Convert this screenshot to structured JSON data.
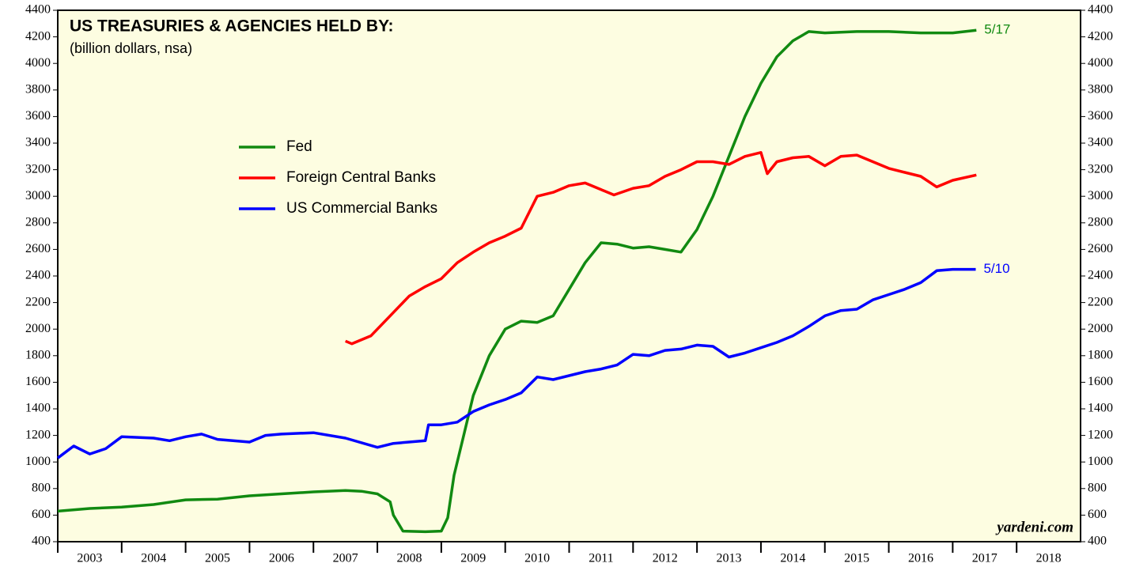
{
  "chart_data": {
    "type": "line",
    "title": "US TREASURIES & AGENCIES HELD BY:",
    "subtitle": "(billion dollars, nsa)",
    "source": "yardeni.com",
    "xlim": [
      2003,
      2019
    ],
    "xticks": [
      2003,
      2004,
      2005,
      2006,
      2007,
      2008,
      2009,
      2010,
      2011,
      2012,
      2013,
      2014,
      2015,
      2016,
      2017,
      2018
    ],
    "ylim": [
      400,
      4400
    ],
    "yticks": [
      400,
      600,
      800,
      1000,
      1200,
      1400,
      1600,
      1800,
      2000,
      2200,
      2400,
      2600,
      2800,
      3000,
      3200,
      3400,
      3600,
      3800,
      4000,
      4200,
      4400
    ],
    "series": [
      {
        "name": "Fed",
        "color": "#118a11",
        "end_label": "5/17",
        "x": [
          2003.0,
          2003.5,
          2004.0,
          2004.5,
          2005.0,
          2005.5,
          2006.0,
          2006.5,
          2007.0,
          2007.5,
          2007.75,
          2008.0,
          2008.2,
          2008.25,
          2008.4,
          2008.75,
          2009.0,
          2009.1,
          2009.2,
          2009.35,
          2009.5,
          2009.75,
          2010.0,
          2010.25,
          2010.5,
          2010.75,
          2011.0,
          2011.25,
          2011.5,
          2011.75,
          2012.0,
          2012.25,
          2012.5,
          2012.75,
          2013.0,
          2013.25,
          2013.5,
          2013.75,
          2014.0,
          2014.25,
          2014.5,
          2014.75,
          2015.0,
          2015.5,
          2016.0,
          2016.5,
          2017.0,
          2017.37
        ],
        "values": [
          630,
          650,
          660,
          680,
          715,
          720,
          745,
          760,
          775,
          785,
          780,
          760,
          700,
          600,
          480,
          475,
          480,
          580,
          900,
          1200,
          1500,
          1800,
          2000,
          2060,
          2050,
          2100,
          2300,
          2500,
          2650,
          2640,
          2610,
          2620,
          2600,
          2580,
          2750,
          3000,
          3300,
          3600,
          3850,
          4050,
          4170,
          4240,
          4230,
          4240,
          4240,
          4230,
          4230,
          4250
        ]
      },
      {
        "name": "Foreign Central Banks",
        "color": "#ff0000",
        "x": [
          2007.5,
          2007.6,
          2007.9,
          2008.2,
          2008.5,
          2008.75,
          2009.0,
          2009.25,
          2009.5,
          2009.75,
          2010.0,
          2010.25,
          2010.5,
          2010.75,
          2011.0,
          2011.25,
          2011.5,
          2011.7,
          2012.0,
          2012.25,
          2012.5,
          2012.75,
          2013.0,
          2013.25,
          2013.5,
          2013.75,
          2014.0,
          2014.1,
          2014.25,
          2014.5,
          2014.75,
          2015.0,
          2015.25,
          2015.5,
          2015.75,
          2016.0,
          2016.25,
          2016.5,
          2016.75,
          2017.0,
          2017.37
        ],
        "values": [
          1910,
          1890,
          1950,
          2100,
          2250,
          2320,
          2380,
          2500,
          2580,
          2650,
          2700,
          2760,
          3000,
          3030,
          3080,
          3100,
          3050,
          3010,
          3060,
          3080,
          3150,
          3200,
          3260,
          3260,
          3240,
          3300,
          3330,
          3170,
          3260,
          3290,
          3300,
          3230,
          3300,
          3310,
          3260,
          3210,
          3180,
          3150,
          3070,
          3120,
          3160
        ]
      },
      {
        "name": "US Commercial Banks",
        "color": "#0000ff",
        "end_label": "5/10",
        "x": [
          2003.0,
          2003.25,
          2003.5,
          2003.75,
          2004.0,
          2004.5,
          2004.75,
          2005.0,
          2005.25,
          2005.5,
          2006.0,
          2006.25,
          2006.5,
          2007.0,
          2007.5,
          2008.0,
          2008.25,
          2008.75,
          2008.8,
          2009.0,
          2009.25,
          2009.5,
          2009.75,
          2010.0,
          2010.25,
          2010.5,
          2010.75,
          2011.0,
          2011.25,
          2011.5,
          2011.75,
          2012.0,
          2012.25,
          2012.5,
          2012.75,
          2013.0,
          2013.25,
          2013.5,
          2013.75,
          2014.0,
          2014.25,
          2014.5,
          2014.75,
          2015.0,
          2015.25,
          2015.5,
          2015.75,
          2016.0,
          2016.25,
          2016.5,
          2016.75,
          2017.0,
          2017.36
        ],
        "values": [
          1030,
          1120,
          1060,
          1100,
          1190,
          1180,
          1160,
          1190,
          1210,
          1170,
          1150,
          1200,
          1210,
          1220,
          1180,
          1110,
          1140,
          1160,
          1280,
          1280,
          1300,
          1380,
          1430,
          1470,
          1520,
          1640,
          1620,
          1650,
          1680,
          1700,
          1730,
          1810,
          1800,
          1840,
          1850,
          1880,
          1870,
          1790,
          1820,
          1860,
          1900,
          1950,
          2020,
          2100,
          2140,
          2150,
          2220,
          2260,
          2300,
          2350,
          2440,
          2450,
          2450
        ]
      }
    ]
  }
}
